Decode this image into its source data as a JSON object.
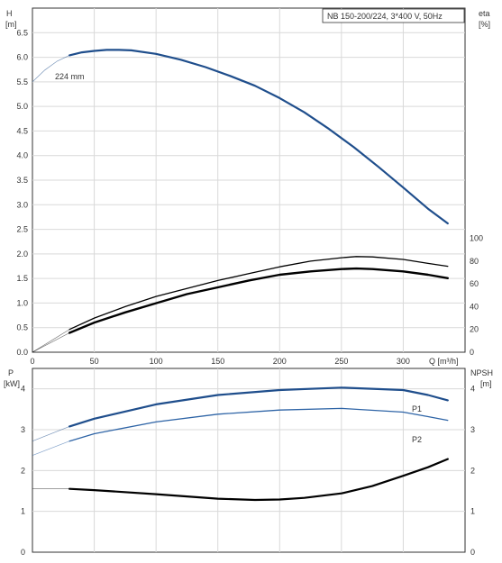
{
  "chart_data": [
    {
      "type": "line",
      "title": "NB 150-200/224, 3*400 V, 50Hz",
      "xlabel": "Q [m³/h]",
      "ylabel_left": "H",
      "ylabel_left_unit": "[m]",
      "ylabel_right": "eta",
      "ylabel_right_unit": "[%]",
      "xlim": [
        0,
        350
      ],
      "ylim_left": [
        0,
        7.0
      ],
      "ylim_right": [
        0,
        100
      ],
      "x_ticks": [
        "0",
        "50",
        "100",
        "150",
        "200",
        "250",
        "300"
      ],
      "y_ticks_left": [
        "0.0",
        "0.5",
        "1.0",
        "1.5",
        "2.0",
        "2.5",
        "3.0",
        "3.5",
        "4.0",
        "4.5",
        "5.0",
        "5.5",
        "6.0",
        "6.5"
      ],
      "y_ticks_right": [
        "0",
        "20",
        "40",
        "60",
        "80",
        "100"
      ],
      "grid": true,
      "annotation": "224 mm",
      "series": [
        {
          "name": "224 mm",
          "axis": "left",
          "color": "#1f4e8c",
          "x": [
            0,
            10,
            20,
            30,
            40,
            50,
            60,
            70,
            80,
            100,
            120,
            140,
            160,
            180,
            200,
            220,
            240,
            260,
            280,
            300,
            320,
            336
          ],
          "y": [
            5.5,
            5.74,
            5.92,
            6.04,
            6.1,
            6.13,
            6.15,
            6.15,
            6.14,
            6.07,
            5.95,
            5.8,
            5.62,
            5.42,
            5.17,
            4.88,
            4.54,
            4.17,
            3.77,
            3.35,
            2.92,
            2.62
          ]
        },
        {
          "name": "",
          "axis": "right",
          "color": "#000000",
          "x": [
            0,
            30,
            50,
            75,
            100,
            125,
            150,
            175,
            200,
            225,
            250,
            262,
            275,
            300,
            320,
            336
          ],
          "y": [
            0,
            20,
            30,
            40,
            49,
            56,
            63,
            69,
            75,
            80,
            83,
            84,
            83.7,
            81.5,
            78,
            75.5
          ]
        },
        {
          "name": "",
          "axis": "right",
          "color": "#000000",
          "x": [
            0,
            30,
            50,
            75,
            100,
            125,
            150,
            175,
            200,
            225,
            250,
            262,
            275,
            300,
            320,
            336
          ],
          "y": [
            0,
            17,
            26,
            35,
            43,
            51,
            57,
            63,
            68,
            71,
            73,
            73.5,
            73,
            71,
            68,
            65
          ]
        }
      ]
    },
    {
      "type": "line",
      "xlabel": "",
      "ylabel_left": "P",
      "ylabel_left_unit": "[kW]",
      "ylabel_right": "NPSH",
      "ylabel_right_unit": "[m]",
      "xlim": [
        0,
        350
      ],
      "ylim_left": [
        0,
        4.5
      ],
      "ylim_right": [
        0,
        4.5
      ],
      "y_ticks_left": [
        "0",
        "1",
        "2",
        "3",
        "4"
      ],
      "y_ticks_right": [
        "0",
        "1",
        "2",
        "3",
        "4"
      ],
      "grid": true,
      "series": [
        {
          "name": "P1",
          "axis": "left",
          "color": "#1f4e8c",
          "x": [
            0,
            30,
            50,
            100,
            150,
            200,
            250,
            300,
            320,
            336
          ],
          "y": [
            2.72,
            3.08,
            3.27,
            3.62,
            3.85,
            3.97,
            4.03,
            3.97,
            3.85,
            3.72
          ]
        },
        {
          "name": "P2",
          "axis": "left",
          "color": "#2e64a6",
          "x": [
            0,
            30,
            50,
            100,
            150,
            200,
            250,
            300,
            320,
            336
          ],
          "y": [
            2.37,
            2.72,
            2.9,
            3.19,
            3.38,
            3.48,
            3.52,
            3.43,
            3.32,
            3.23
          ]
        },
        {
          "name": "",
          "axis": "right",
          "color": "#000000",
          "x": [
            0,
            30,
            50,
            100,
            150,
            180,
            200,
            220,
            250,
            275,
            300,
            320,
            336
          ],
          "y": [
            1.55,
            1.55,
            1.52,
            1.42,
            1.31,
            1.28,
            1.29,
            1.33,
            1.44,
            1.62,
            1.87,
            2.08,
            2.28
          ]
        }
      ]
    }
  ]
}
